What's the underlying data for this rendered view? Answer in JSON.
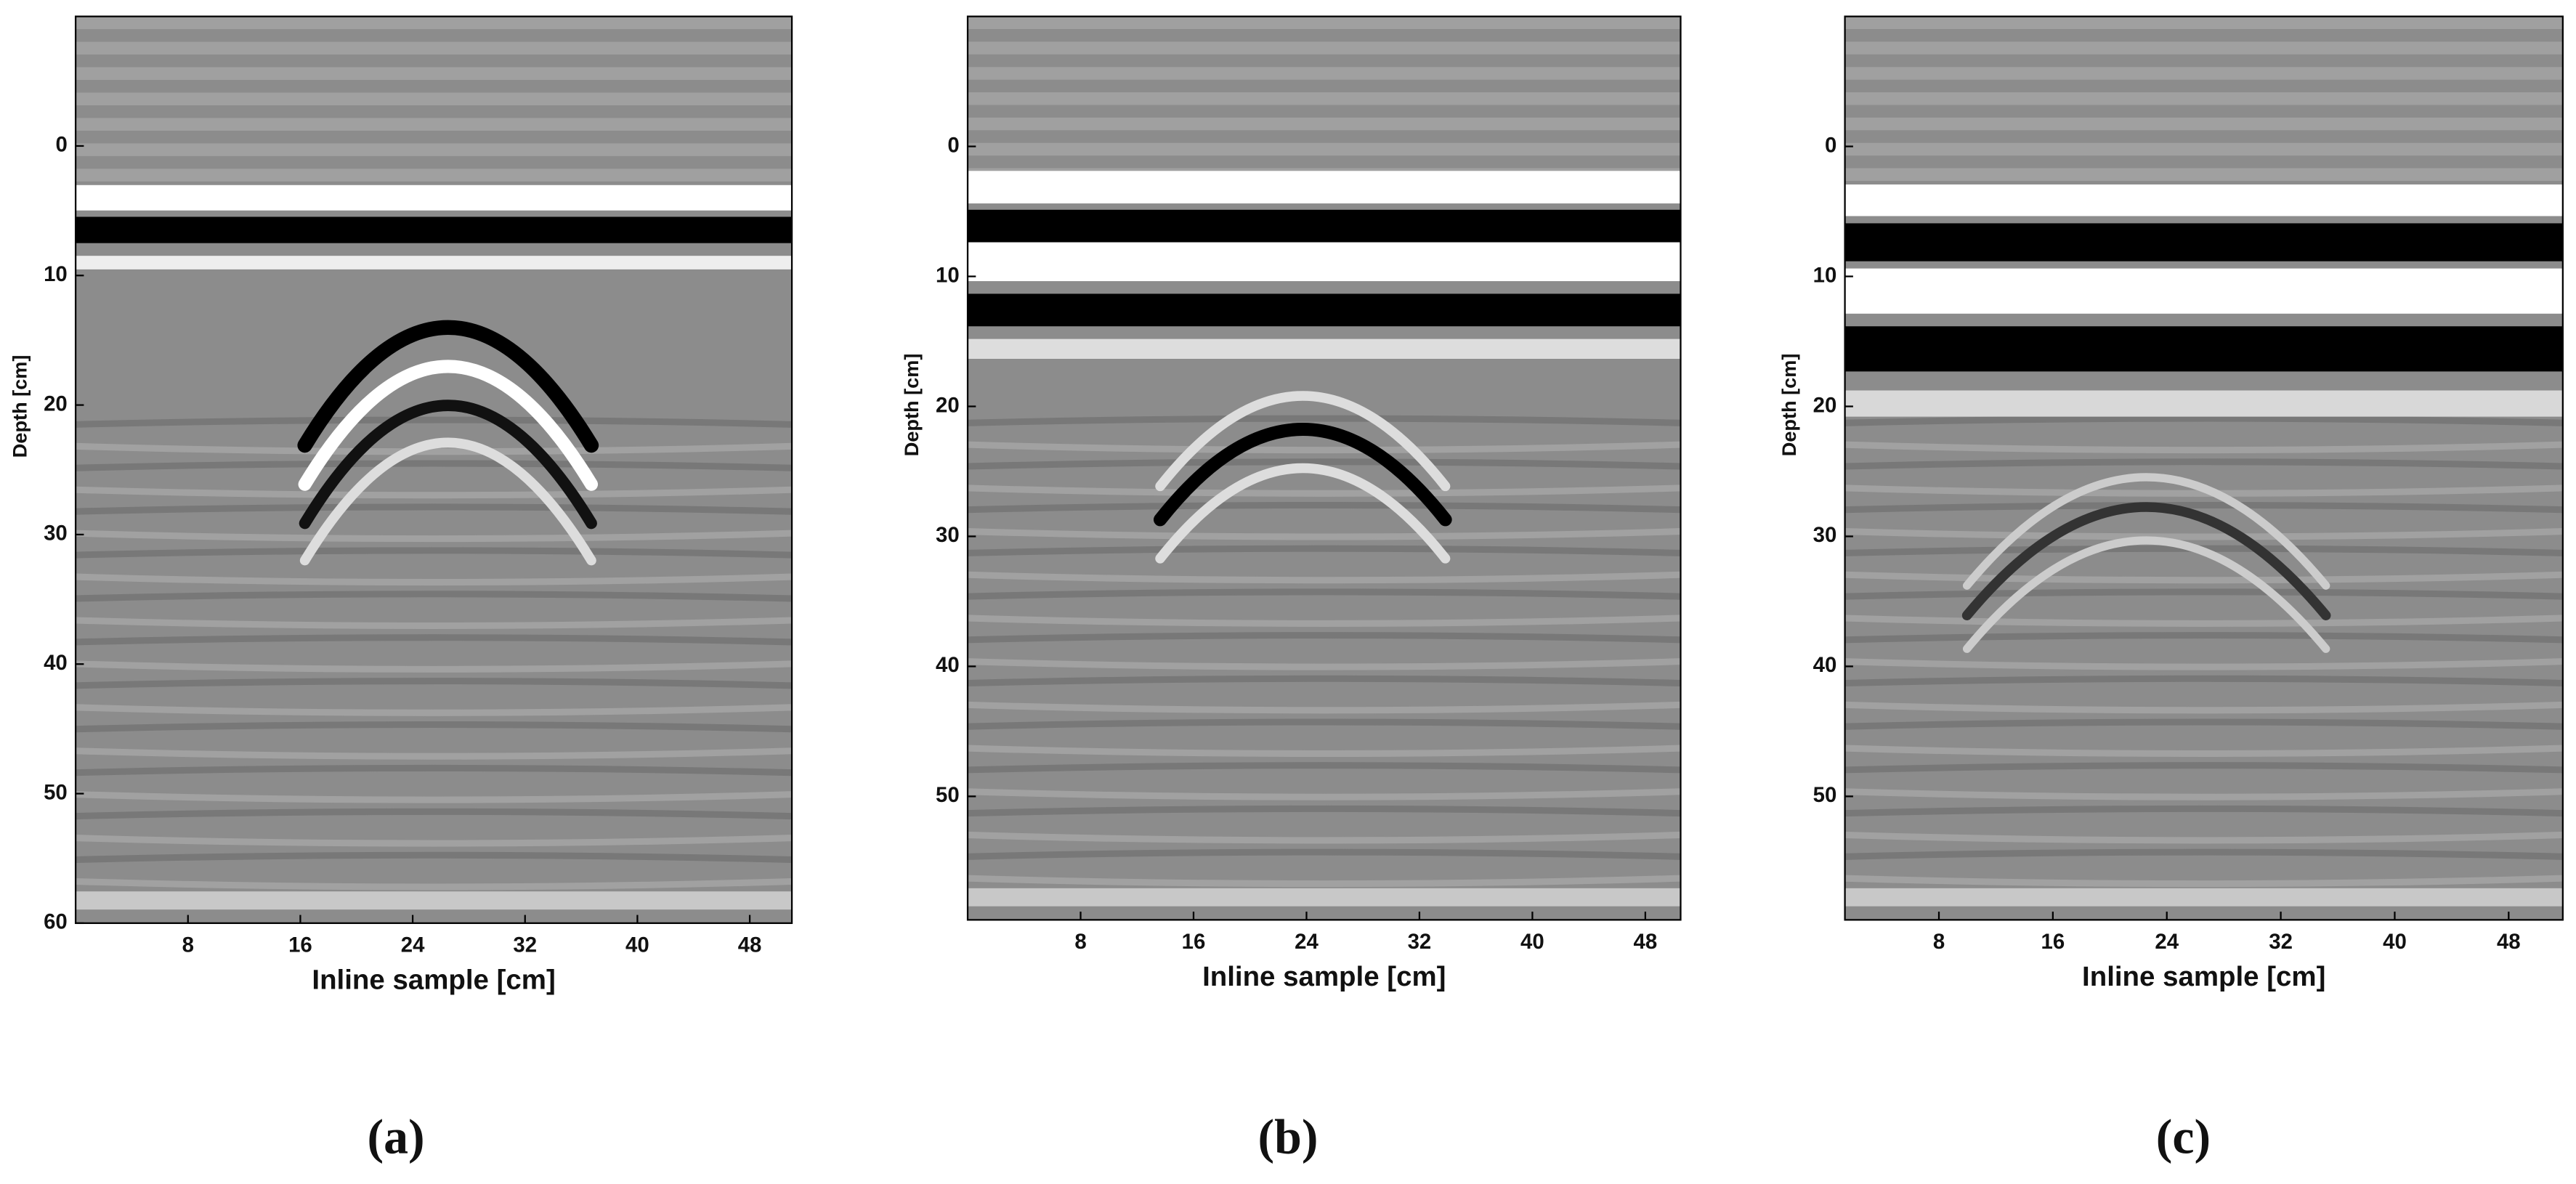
{
  "chart_data": [
    {
      "type": "heatmap",
      "label": "(a)",
      "x_label": "Inline sample [cm]",
      "y_label": "Depth [cm]",
      "xlim": [
        0,
        51
      ],
      "ylim": [
        -10,
        60
      ],
      "xticks": [
        8,
        16,
        24,
        32,
        40,
        48
      ],
      "yticks": [
        0,
        10,
        20,
        30,
        40,
        50,
        60
      ]
    },
    {
      "type": "heatmap",
      "label": "(b)",
      "x_label": "Inline sample [cm]",
      "y_label": "Depth [cm]",
      "xlim": [
        0,
        50.5
      ],
      "ylim": [
        -10,
        59.5
      ],
      "xticks": [
        8,
        16,
        24,
        32,
        40,
        48
      ],
      "yticks": [
        0,
        10,
        20,
        30,
        40,
        50
      ]
    },
    {
      "type": "heatmap",
      "label": "(c)",
      "x_label": "Inline sample [cm]",
      "y_label": "Depth [cm]",
      "xlim": [
        1.4,
        51.8
      ],
      "ylim": [
        -10,
        59.5
      ],
      "xticks": [
        8,
        16,
        24,
        32,
        40,
        48
      ],
      "yticks": [
        0,
        10,
        20,
        30,
        40,
        50
      ]
    }
  ]
}
